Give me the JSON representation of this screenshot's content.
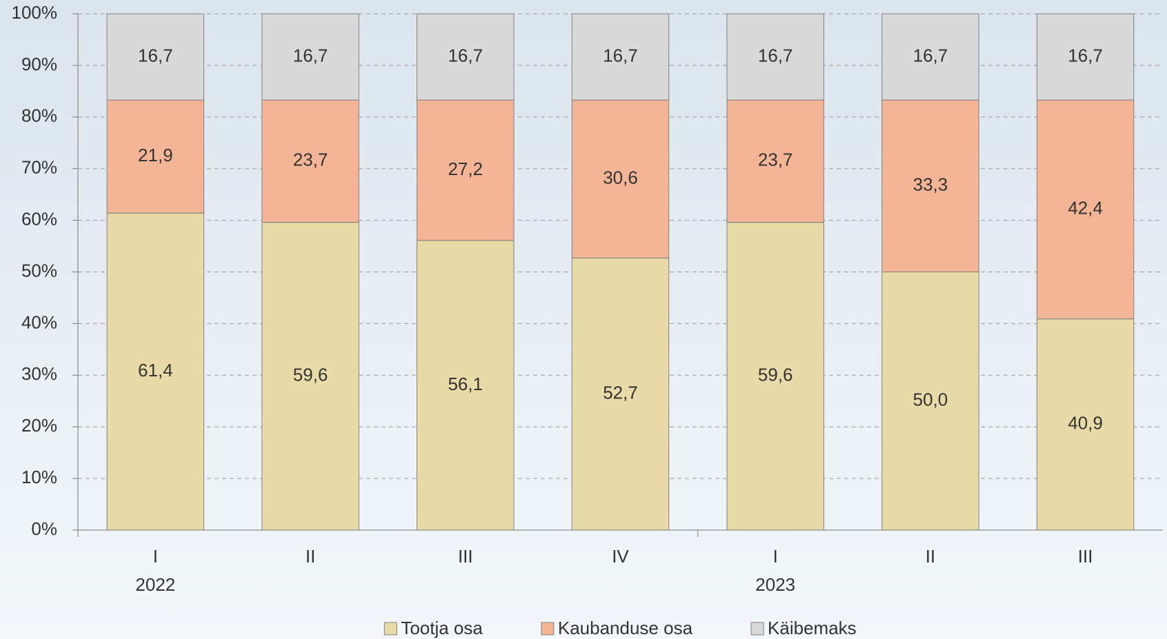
{
  "chart_data": {
    "type": "stacked_bar",
    "categories": [
      "I",
      "II",
      "III",
      "IV",
      "I",
      "II",
      "III"
    ],
    "category_groups": [
      "2022",
      null,
      null,
      null,
      "2023",
      null,
      null
    ],
    "series": [
      {
        "name": "Tootja osa",
        "color": "#e8dba8",
        "values": [
          61.4,
          59.6,
          56.1,
          52.7,
          59.6,
          50.0,
          40.9
        ],
        "value_labels": [
          "61,4",
          "59,6",
          "56,1",
          "52,7",
          "59,6",
          "50,0",
          "40,9"
        ]
      },
      {
        "name": "Kaubanduse osa",
        "color": "#f4b496",
        "values": [
          21.9,
          23.7,
          27.2,
          30.6,
          23.7,
          33.3,
          42.4
        ],
        "value_labels": [
          "21,9",
          "23,7",
          "27,2",
          "30,6",
          "23,7",
          "33,3",
          "42,4"
        ]
      },
      {
        "name": "Käibemaks",
        "color": "#d9d9d9",
        "values": [
          16.7,
          16.7,
          16.7,
          16.7,
          16.7,
          16.7,
          16.7
        ],
        "value_labels": [
          "16,7",
          "16,7",
          "16,7",
          "16,7",
          "16,7",
          "16,7",
          "16,7"
        ]
      }
    ],
    "ylim": [
      0,
      100
    ],
    "yticks": [
      {
        "value": 0,
        "label": "0%"
      },
      {
        "value": 10,
        "label": "10%"
      },
      {
        "value": 20,
        "label": "20%"
      },
      {
        "value": 30,
        "label": "30%"
      },
      {
        "value": 40,
        "label": "40%"
      },
      {
        "value": 50,
        "label": "50%"
      },
      {
        "value": 60,
        "label": "60%"
      },
      {
        "value": 70,
        "label": "70%"
      },
      {
        "value": 80,
        "label": "80%"
      },
      {
        "value": 90,
        "label": "90%"
      },
      {
        "value": 100,
        "label": "100%"
      }
    ],
    "grid": true,
    "legend": "bottom"
  }
}
